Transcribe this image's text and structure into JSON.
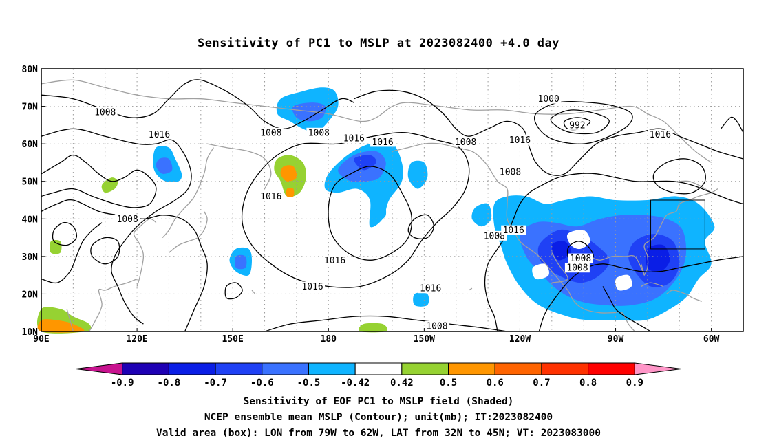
{
  "title": "Sensitivity of PC1 to MSLP at 2023082400 +4.0 day",
  "axes": {
    "lat_labels": [
      "80N",
      "70N",
      "60N",
      "50N",
      "40N",
      "30N",
      "20N",
      "10N"
    ],
    "lon_labels": [
      "90E",
      "120E",
      "150E",
      "180",
      "150W",
      "120W",
      "90W",
      "60W"
    ]
  },
  "contour_labels": [
    {
      "text": "1008",
      "lon": 110,
      "lat": 68.5
    },
    {
      "text": "1016",
      "lon": 127,
      "lat": 62.5
    },
    {
      "text": "1008",
      "lon": 162,
      "lat": 63
    },
    {
      "text": "1008",
      "lon": 177,
      "lat": 63
    },
    {
      "text": "1016",
      "lon": 162,
      "lat": 46
    },
    {
      "text": "1008",
      "lon": 117,
      "lat": 40
    },
    {
      "text": "1016",
      "lon": 188,
      "lat": 61.5
    },
    {
      "text": "1016",
      "lon": 197,
      "lat": 60.5
    },
    {
      "text": "1008",
      "lon": 223,
      "lat": 60.5
    },
    {
      "text": "1016",
      "lon": 240,
      "lat": 61
    },
    {
      "text": "1000",
      "lon": 249,
      "lat": 72
    },
    {
      "text": "992",
      "lon": 258,
      "lat": 65
    },
    {
      "text": "1016",
      "lon": 284,
      "lat": 62.5
    },
    {
      "text": "1008",
      "lon": 237,
      "lat": 52.5
    },
    {
      "text": "1016",
      "lon": 182,
      "lat": 29
    },
    {
      "text": "1016",
      "lon": 175,
      "lat": 22
    },
    {
      "text": "1016",
      "lon": 212,
      "lat": 21.5
    },
    {
      "text": "1008",
      "lon": 214,
      "lat": 11.5
    },
    {
      "text": "1008",
      "lon": 232,
      "lat": 35.5
    },
    {
      "text": "1016",
      "lon": 238,
      "lat": 37
    },
    {
      "text": "1008",
      "lon": 259,
      "lat": 29.5
    },
    {
      "text": "1008",
      "lon": 258,
      "lat": 27
    }
  ],
  "box": {
    "lon_min": 281,
    "lon_max": 298,
    "lat_min": 32,
    "lat_max": 45
  },
  "colorbar": {
    "ticks": [
      "-0.9",
      "-0.8",
      "-0.7",
      "-0.6",
      "-0.5",
      "-0.42",
      "0.42",
      "0.5",
      "0.6",
      "0.7",
      "0.8",
      "0.9"
    ],
    "colors": [
      "#c8138f",
      "#1e00b4",
      "#0a1ee6",
      "#1f41f5",
      "#3a72ff",
      "#0fb4ff",
      "#ffffff",
      "#96d232",
      "#ff9600",
      "#ff6400",
      "#ff3200",
      "#ff0000",
      "#ff96c8"
    ]
  },
  "captions": [
    "Sensitivity of EOF PC1 to MSLP field (Shaded)",
    "NCEP ensemble mean MSLP (Contour); unit(mb); IT:2023082400",
    "Valid area (box): LON from 79W to 62W, LAT from 32N to 45N; VT: 2023083000"
  ]
}
